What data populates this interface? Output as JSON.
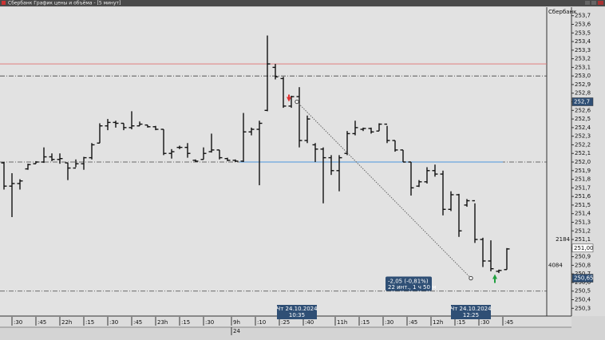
{
  "window_title": "Сбербанк График цены и объёма - [5 минут]",
  "chart_data": {
    "type": "ohlc",
    "instrument": "Сбербанк",
    "x": [
      0,
      1,
      2,
      3,
      4,
      5,
      6,
      7,
      8,
      9,
      10,
      11,
      12,
      13,
      14,
      15,
      16,
      17,
      18,
      19,
      20,
      21,
      22,
      23,
      24,
      25,
      26,
      27,
      28,
      29,
      30,
      31,
      32,
      33,
      34,
      35,
      36,
      37,
      38,
      39,
      40,
      41,
      42,
      43,
      44,
      45,
      46,
      47,
      48,
      49,
      50,
      51,
      52,
      53,
      54,
      55,
      56,
      57,
      58,
      59,
      60,
      61,
      62,
      63
    ],
    "open": [
      251.99,
      251.72,
      251.75,
      251.92,
      251.98,
      252.0,
      252.06,
      252.03,
      251.99,
      251.93,
      251.98,
      252.05,
      252.22,
      252.42,
      252.46,
      252.45,
      252.4,
      252.42,
      252.43,
      252.41,
      252.38,
      252.1,
      252.17,
      252.17,
      252.02,
      252.03,
      252.12,
      252.14,
      252.04,
      252.02,
      252.01,
      252.35,
      252.38,
      252.6,
      253.1,
      252.97,
      252.65,
      252.76,
      252.25,
      252.2,
      252.15,
      252.05,
      251.9,
      252.1,
      252.33,
      252.38,
      252.39,
      252.36,
      252.44,
      252.25,
      252.14,
      252.0,
      251.72,
      251.77,
      251.9,
      251.86,
      251.45,
      251.62,
      251.5,
      251.55,
      251.1,
      250.85,
      250.73,
      250.75
    ],
    "high": [
      252.0,
      251.87,
      251.8,
      251.98,
      252.01,
      252.17,
      252.1,
      252.1,
      251.99,
      252.03,
      252.06,
      252.22,
      252.45,
      252.5,
      252.48,
      252.45,
      252.59,
      252.47,
      252.43,
      252.42,
      252.38,
      252.15,
      252.19,
      252.22,
      252.03,
      252.17,
      252.33,
      252.14,
      252.05,
      252.03,
      252.57,
      252.4,
      252.48,
      253.47,
      253.14,
      252.99,
      252.77,
      252.87,
      252.54,
      252.22,
      252.17,
      252.08,
      252.08,
      252.36,
      252.48,
      252.4,
      252.4,
      252.45,
      252.42,
      252.25,
      252.14,
      252.0,
      251.79,
      251.94,
      251.97,
      251.9,
      251.66,
      251.63,
      251.57,
      251.52,
      251.12,
      251.09,
      250.75,
      251.0
    ],
    "low": [
      251.68,
      251.36,
      251.68,
      251.91,
      251.98,
      251.99,
      252.01,
      251.98,
      251.79,
      251.94,
      251.91,
      252.03,
      252.22,
      252.37,
      252.4,
      252.37,
      252.38,
      252.42,
      252.4,
      252.37,
      252.08,
      252.04,
      252.15,
      252.05,
      252.0,
      252.03,
      252.11,
      252.03,
      252.01,
      252.0,
      252.0,
      252.31,
      251.73,
      252.59,
      252.96,
      252.63,
      252.63,
      252.17,
      252.22,
      252.0,
      251.52,
      251.85,
      251.66,
      252.08,
      252.31,
      252.36,
      252.33,
      252.36,
      252.22,
      252.12,
      252.0,
      251.61,
      251.71,
      251.75,
      251.83,
      251.38,
      251.43,
      251.13,
      251.48,
      251.06,
      250.78,
      250.73,
      250.71,
      250.75
    ],
    "close": [
      251.72,
      251.75,
      251.78,
      251.97,
      252.0,
      252.06,
      252.03,
      252.04,
      251.93,
      251.98,
      252.05,
      252.2,
      252.42,
      252.46,
      252.45,
      252.4,
      252.42,
      252.44,
      252.41,
      252.38,
      252.1,
      252.12,
      252.17,
      252.1,
      252.01,
      252.1,
      252.14,
      252.05,
      252.02,
      252.01,
      252.35,
      252.38,
      252.45,
      253.14,
      252.99,
      252.65,
      252.76,
      252.25,
      252.5,
      252.15,
      252.05,
      251.9,
      252.05,
      252.33,
      252.4,
      252.39,
      252.35,
      252.44,
      252.25,
      252.14,
      252.0,
      251.7,
      251.77,
      251.9,
      251.86,
      251.45,
      251.62,
      251.2,
      251.55,
      251.1,
      250.85,
      250.76,
      250.74,
      250.99
    ],
    "color": "#111111",
    "xlim": [
      -0.5,
      68
    ],
    "ylim": [
      250.21,
      253.79
    ],
    "yticks": [
      {
        "value": 250.3,
        "label": "250,3"
      },
      {
        "value": 250.4,
        "label": "250,4"
      },
      {
        "value": 250.5,
        "label": "250,5"
      },
      {
        "value": 250.6,
        "label": "250,6"
      },
      {
        "value": 250.7,
        "label": "250,7"
      },
      {
        "value": 250.8,
        "label": "250,8"
      },
      {
        "value": 250.9,
        "label": "250,9"
      },
      {
        "value": 251.0,
        "label": "251,0"
      },
      {
        "value": 251.1,
        "label": "251,1"
      },
      {
        "value": 251.2,
        "label": "251,2"
      },
      {
        "value": 251.3,
        "label": "251,3"
      },
      {
        "value": 251.4,
        "label": "251,4"
      },
      {
        "value": 251.5,
        "label": "251,5"
      },
      {
        "value": 251.6,
        "label": "251,6"
      },
      {
        "value": 251.7,
        "label": "251,7"
      },
      {
        "value": 251.8,
        "label": "251,8"
      },
      {
        "value": 251.9,
        "label": "251,9"
      },
      {
        "value": 252.0,
        "label": "252,0"
      },
      {
        "value": 252.1,
        "label": "252,1"
      },
      {
        "value": 252.2,
        "label": "252,2"
      },
      {
        "value": 252.3,
        "label": "252,3"
      },
      {
        "value": 252.4,
        "label": "252,4"
      },
      {
        "value": 252.5,
        "label": "252,5"
      },
      {
        "value": 252.6,
        "label": "252,6"
      },
      {
        "value": 252.7,
        "label": "252,7"
      },
      {
        "value": 252.8,
        "label": "252,8"
      },
      {
        "value": 252.9,
        "label": "252,9"
      },
      {
        "value": 253.0,
        "label": "253,0"
      },
      {
        "value": 253.1,
        "label": "253,1"
      },
      {
        "value": 253.2,
        "label": "253,2"
      },
      {
        "value": 253.3,
        "label": "253,3"
      },
      {
        "value": 253.4,
        "label": "253,4"
      },
      {
        "value": 253.5,
        "label": "253,5"
      },
      {
        "value": 253.6,
        "label": "253,6"
      },
      {
        "value": 253.7,
        "label": "253,7"
      }
    ],
    "xticks": [
      {
        "value": 1,
        "label": ":30"
      },
      {
        "value": 4,
        "label": ":45"
      },
      {
        "value": 7,
        "label": "22h"
      },
      {
        "value": 10,
        "label": ":15"
      },
      {
        "value": 13,
        "label": ":30"
      },
      {
        "value": 16,
        "label": ":45"
      },
      {
        "value": 19,
        "label": "23h"
      },
      {
        "value": 22,
        "label": ":15"
      },
      {
        "value": 25,
        "label": ":30"
      },
      {
        "value": 28.5,
        "label": "9h"
      },
      {
        "value": 31.5,
        "label": ":10"
      },
      {
        "value": 34.5,
        "label": ":25"
      },
      {
        "value": 37.5,
        "label": ":40"
      },
      {
        "value": 41.5,
        "label": "11h"
      },
      {
        "value": 44.5,
        "label": ":15"
      },
      {
        "value": 47.5,
        "label": ":30"
      },
      {
        "value": 50.5,
        "label": ":45"
      },
      {
        "value": 53.5,
        "label": "12h"
      },
      {
        "value": 56.5,
        "label": ":15"
      },
      {
        "value": 59.5,
        "label": ":30"
      },
      {
        "value": 62.5,
        "label": ":45"
      }
    ],
    "xticks_secondary": [
      {
        "value": 28.5,
        "label": "24"
      }
    ],
    "hlines": [
      {
        "value": 253.14,
        "color": "#e07070",
        "style": "solid"
      },
      {
        "value": 253.0,
        "color": "#444444",
        "style": "dashdot"
      },
      {
        "value": 252.0,
        "color": "#444444",
        "style": "dashdot"
      },
      {
        "value": 250.5,
        "color": "#444444",
        "style": "dashdot"
      }
    ],
    "segments": [
      {
        "value": 252.0,
        "from": 29.5,
        "to": 62.5,
        "color": "#6aa6e0"
      }
    ],
    "price_markers": [
      {
        "value": 252.7,
        "label": "252,7",
        "style": "dark"
      },
      {
        "value": 251.0,
        "label": "251,00",
        "style": "light"
      },
      {
        "value": 250.65,
        "label": "250,65",
        "style": "dark"
      }
    ],
    "volume_labels": [
      {
        "value": 251.1,
        "label": "2184"
      },
      {
        "value": 250.8,
        "label": "4084"
      }
    ],
    "measure": {
      "from_x": 36.7,
      "from": 252.7,
      "to_x": 58.5,
      "to": 250.65,
      "label": "-2,05 (-0,81%)",
      "sublabel": "22 инт., 1 ч 50 м"
    },
    "cursor_labels": [
      {
        "x": 36.7,
        "date": "Чт 24.10.2024",
        "time": "10:35"
      },
      {
        "x": 58.5,
        "date": "Чт 24.10.2024",
        "time": "12:25"
      }
    ],
    "trade_markers": [
      {
        "x": 35.7,
        "value": 252.7,
        "side": "sell",
        "color": "#e03030"
      },
      {
        "x": 61.5,
        "value": 250.65,
        "side": "buy",
        "color": "#20a040"
      }
    ]
  }
}
